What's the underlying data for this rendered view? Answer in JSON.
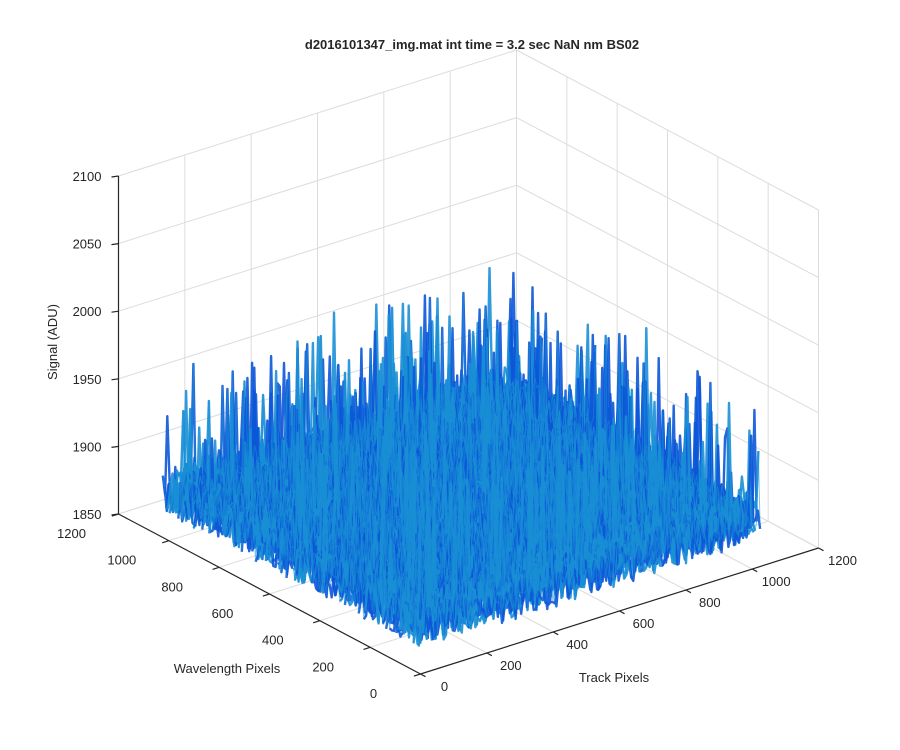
{
  "chart_data": {
    "type": "surface",
    "title": "d2016101347_img.mat int time = 3.2 sec  NaN nm BS02",
    "xlabel": "Track Pixels",
    "ylabel": "Wavelength Pixels",
    "zlabel": "Signal (ADU)",
    "x_ticks": [
      "0",
      "200",
      "400",
      "600",
      "800",
      "1000",
      "1200"
    ],
    "y_ticks": [
      "0",
      "200",
      "400",
      "600",
      "800",
      "1000",
      "1200"
    ],
    "z_ticks": [
      "1850",
      "1900",
      "1950",
      "2000",
      "2050",
      "2100"
    ],
    "xlim": [
      0,
      1200
    ],
    "ylim": [
      0,
      1200
    ],
    "zlim": [
      1850,
      2100
    ],
    "grid": true,
    "surface": {
      "x_range": [
        0,
        1024
      ],
      "y_range": [
        0,
        1024
      ],
      "z_baseline": 1885,
      "z_peak_max": 1998,
      "colormap": [
        "#0c57d8",
        "#1a8fd6",
        "#27b0c8",
        "#56c39a"
      ]
    }
  }
}
